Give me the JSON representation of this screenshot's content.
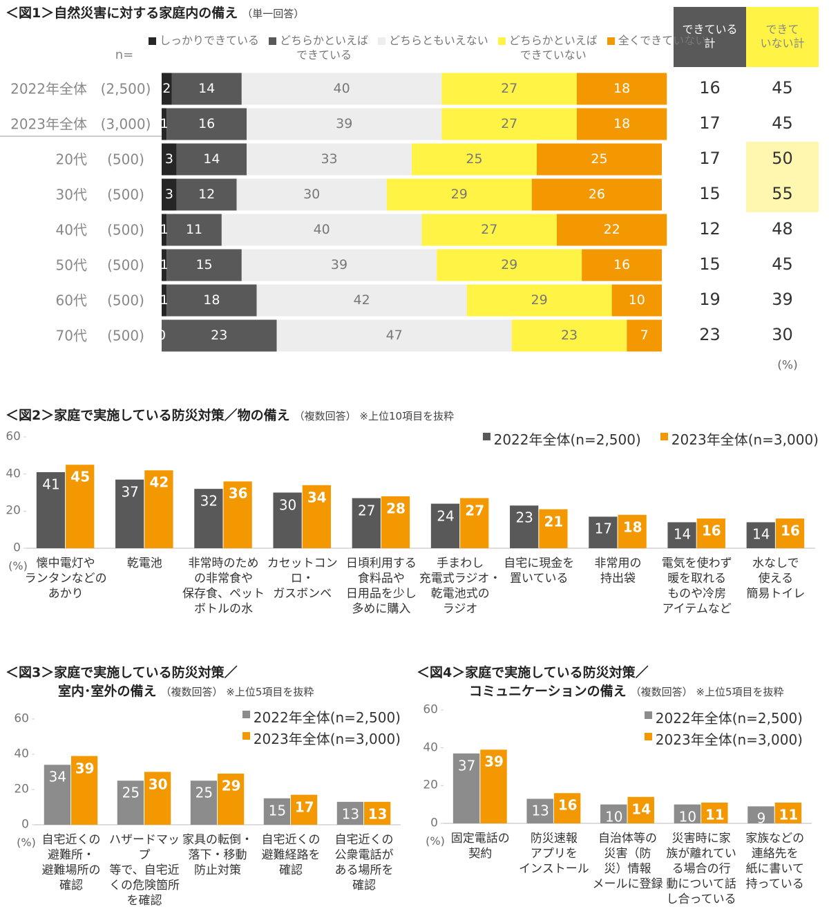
{
  "chart_data": [
    {
      "type": "bar",
      "stacked": true,
      "orientation": "horizontal",
      "title": "＜図1＞自然災害に対する家庭内の備え",
      "subtitle": "（単一回答）",
      "n_label": "n=",
      "unit": "(%)",
      "categories": [
        "2022年全体",
        "2023年全体",
        "20代",
        "30代",
        "40代",
        "50代",
        "60代",
        "70代"
      ],
      "n": [
        "(2,500)",
        "(3,000)",
        "(500)",
        "(500)",
        "(500)",
        "(500)",
        "(500)",
        "(500)"
      ],
      "xlim": [
        0,
        100
      ],
      "legend": "top",
      "series": [
        {
          "name": "しっかりできている",
          "color": "#262626",
          "values": [
            2,
            1,
            3,
            3,
            1,
            1,
            1,
            0
          ]
        },
        {
          "name": "どちらかといえば\nできている",
          "color": "#595959",
          "values": [
            14,
            16,
            14,
            12,
            11,
            15,
            18,
            23
          ]
        },
        {
          "name": "どちらともいえない",
          "color": "#ededed",
          "values": [
            40,
            39,
            33,
            30,
            40,
            39,
            42,
            47
          ]
        },
        {
          "name": "どちらかといえば\nできていない",
          "color": "#fff345",
          "values": [
            27,
            27,
            25,
            29,
            27,
            29,
            29,
            23
          ]
        },
        {
          "name": "全くできていない",
          "color": "#f39800",
          "values": [
            18,
            18,
            25,
            26,
            22,
            16,
            10,
            7
          ]
        }
      ],
      "totals": [
        {
          "name": "できている\n計",
          "color": "#595959",
          "values": [
            16,
            17,
            17,
            15,
            12,
            15,
            19,
            23
          ],
          "cell_colors": [
            null,
            null,
            null,
            null,
            null,
            null,
            null,
            null
          ]
        },
        {
          "name": "できて\nいない計",
          "color": "#fff345",
          "values": [
            45,
            45,
            50,
            55,
            48,
            45,
            39,
            30
          ],
          "cell_colors": [
            null,
            null,
            "#fff7b0",
            "#fff7b0",
            null,
            null,
            null,
            null
          ]
        }
      ]
    },
    {
      "type": "bar",
      "title": "＜図2＞家庭で実施している防災対策／物の備え",
      "subtitle": "（複数回答） ※上位10項目を抜粋",
      "unit": "(%)",
      "legend": "upper right",
      "categories": [
        "懐中電灯や\nランタンなどの\nあかり",
        "乾電池",
        "非常時のため\nの非常食や\n保存食、ペット\nボトルの水",
        "カセットコンロ・\nガスボンベ",
        "日頃利用する\n食料品や\n日用品を少し\n多めに購入",
        "手まわし\n充電式ラジオ・\n乾電池式の\nラジオ",
        "自宅に現金を\n置いている",
        "非常用の\n持出袋",
        "電気を使わず\n暖を取れる\nものや冷房\nアイテムなど",
        "水なしで\n使える\n簡易トイレ"
      ],
      "ylim": [
        0,
        60
      ],
      "yticks": [
        0,
        20,
        40,
        60
      ],
      "series": [
        {
          "name": "2022年全体(n=2,500)",
          "color": "#595959",
          "values": [
            41,
            37,
            32,
            30,
            27,
            24,
            23,
            17,
            14,
            14
          ]
        },
        {
          "name": "2023年全体(n=3,000)",
          "color": "#f39800",
          "values": [
            45,
            42,
            36,
            34,
            28,
            27,
            21,
            18,
            16,
            16
          ]
        }
      ]
    },
    {
      "type": "bar",
      "title": "＜図3＞家庭で実施している防災対策／\n　　　　室内･室外の備え",
      "subtitle": "（複数回答） ※上位5項目を抜粋",
      "unit": "(%)",
      "legend": "upper right",
      "categories": [
        "自宅近くの\n避難所・\n避難場所の\n確認",
        "ハザードマップ\n等で、自宅近\nくの危険箇所\nを確認",
        "家具の転倒・\n落下・移動\n防止対策",
        "自宅近くの\n避難経路を\n確認",
        "自宅近くの\n公衆電話が\nある場所を\n確認"
      ],
      "ylim": [
        0,
        60
      ],
      "yticks": [
        0,
        20,
        40,
        60
      ],
      "series": [
        {
          "name": "2022年全体(n=2,500)",
          "color": "#8c8c8c",
          "values": [
            34,
            25,
            25,
            15,
            13
          ]
        },
        {
          "name": "2023年全体(n=3,000)",
          "color": "#f39800",
          "values": [
            39,
            30,
            29,
            17,
            13
          ]
        }
      ]
    },
    {
      "type": "bar",
      "title": "＜図4＞家庭で実施している防災対策／\n　　　　コミュニケーションの備え",
      "subtitle": "（複数回答） ※上位5項目を抜粋",
      "unit": "(%)",
      "legend": "upper right",
      "categories": [
        "固定電話の\n契約",
        "防災速報\nアプリを\nインストール",
        "自治体等の\n災害（防\n災）情報\nメールに登録",
        "災害時に家\n族が離れてい\nる場合の行\n動について話\nし合っている",
        "家族などの\n連絡先を\n紙に書いて\n持っている"
      ],
      "ylim": [
        0,
        60
      ],
      "yticks": [
        0,
        20,
        40,
        60
      ],
      "series": [
        {
          "name": "2022年全体(n=2,500)",
          "color": "#8c8c8c",
          "values": [
            37,
            13,
            10,
            10,
            9
          ]
        },
        {
          "name": "2023年全体(n=3,000)",
          "color": "#f39800",
          "values": [
            39,
            16,
            14,
            11,
            11
          ]
        }
      ]
    }
  ]
}
